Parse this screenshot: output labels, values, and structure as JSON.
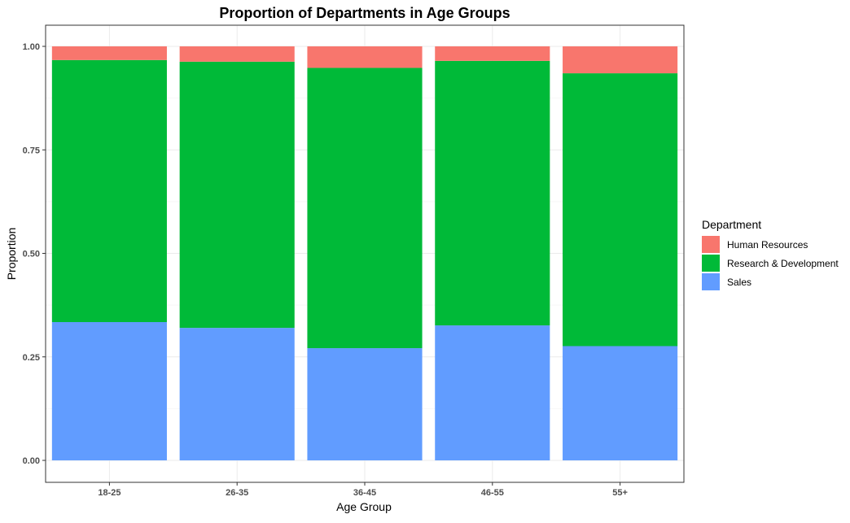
{
  "chart_data": {
    "type": "bar",
    "stacked": true,
    "title": "Proportion of Departments in Age Groups",
    "xlabel": "Age Group",
    "ylabel": "Proportion",
    "ylim": [
      0,
      1.05
    ],
    "y_ticks": [
      "0.00",
      "0.25",
      "0.50",
      "0.75",
      "1.00"
    ],
    "y_tick_values": [
      0,
      0.25,
      0.5,
      0.75,
      1.0
    ],
    "grid": true,
    "legend_title": "Department",
    "legend_position": "right",
    "categories": [
      "18-25",
      "26-35",
      "36-45",
      "46-55",
      "55+"
    ],
    "series": [
      {
        "name": "Sales",
        "color": "#619CFF",
        "values": [
          0.334,
          0.32,
          0.271,
          0.326,
          0.276
        ]
      },
      {
        "name": "Research & Development",
        "color": "#00BA38",
        "values": [
          0.633,
          0.643,
          0.677,
          0.639,
          0.659
        ]
      },
      {
        "name": "Human Resources",
        "color": "#F8766D",
        "values": [
          0.033,
          0.037,
          0.052,
          0.035,
          0.065
        ]
      }
    ],
    "legend_order": [
      "Human Resources",
      "Research & Development",
      "Sales"
    ]
  }
}
